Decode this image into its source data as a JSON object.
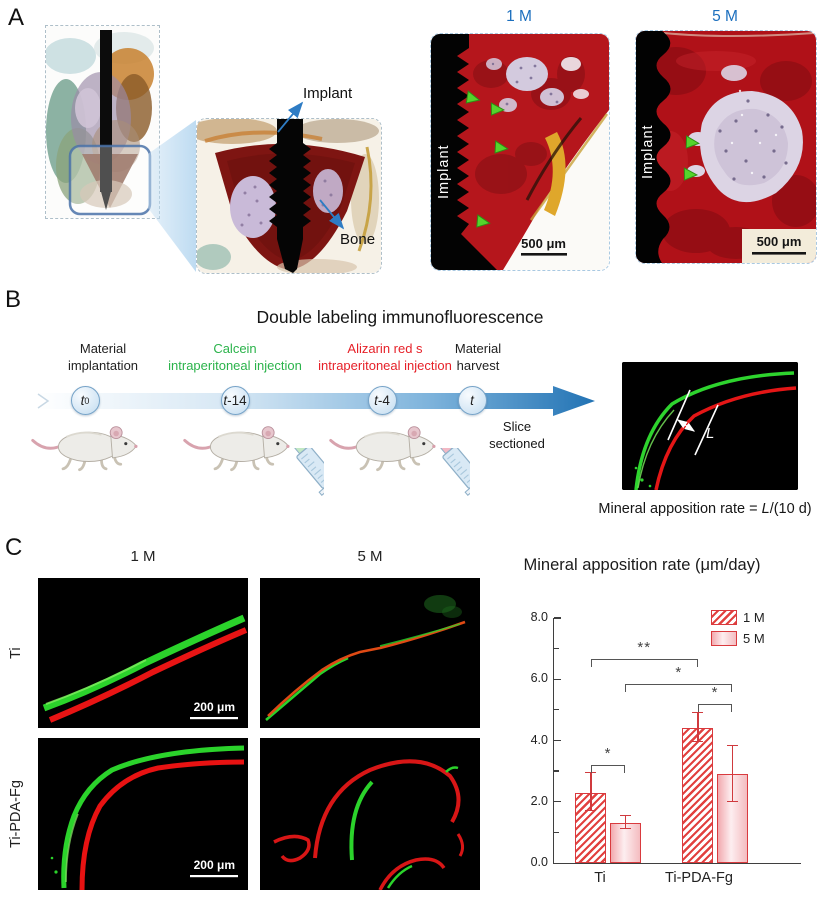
{
  "panel_a": {
    "label": "A",
    "accent_blue": "#1c6fbe",
    "annotations": {
      "implant": "Implant",
      "bone": "Bone"
    },
    "micrographs": [
      {
        "time": "1 M",
        "side": "Implant",
        "scale": "500 μm"
      },
      {
        "time": "5 M",
        "side": "Implant",
        "scale": "500 μm"
      }
    ]
  },
  "panel_b": {
    "label": "B",
    "title": "Double labeling immunofluorescence",
    "events": [
      {
        "line1": "Material",
        "line2": "implantation",
        "t_var": "t",
        "t_sub": "0",
        "t_rest": "",
        "color": "#222222"
      },
      {
        "line1": "Calcein",
        "line2": "intraperitoneal injection",
        "t_var": "t",
        "t_sub": "",
        "t_rest": "-14",
        "color": "#2bb34b"
      },
      {
        "line1": "Alizarin red s",
        "line2": "intraperitoneal injection",
        "t_var": "t",
        "t_sub": "",
        "t_rest": "-4",
        "color": "#e62129"
      },
      {
        "line1": "Material",
        "line2": "harvest",
        "t_var": "t",
        "t_sub": "",
        "t_rest": "",
        "color": "#222222"
      }
    ],
    "slice_line1": "Slice",
    "slice_line2": "sectioned",
    "measure_var": "L",
    "formula_prefix": "Mineral apposition rate = ",
    "formula_var": "L",
    "formula_suffix": "/(10 d)"
  },
  "panel_c": {
    "label": "C",
    "columns": [
      "1 M",
      "5 M"
    ],
    "rows": [
      "Ti",
      "Ti-PDA-Fg"
    ],
    "scale": "200 μm"
  },
  "chart_data": {
    "type": "bar",
    "title": "Mineral apposition rate (μm/day)",
    "categories": [
      "Ti",
      "Ti-PDA-Fg"
    ],
    "series": [
      {
        "name": "1 M",
        "values": [
          2.3,
          4.4
        ],
        "errors": [
          0.6,
          0.45
        ],
        "style": "hatched"
      },
      {
        "name": "5 M",
        "values": [
          1.3,
          2.9
        ],
        "errors": [
          0.2,
          0.9
        ],
        "style": "pink-gradient"
      }
    ],
    "ylim": [
      0,
      8
    ],
    "yticks": [
      0,
      2,
      4,
      6,
      8
    ],
    "ytick_labels": [
      "0.0",
      "2.0",
      "4.0",
      "6.0",
      "8.0"
    ],
    "minor_yticks": [
      1,
      3,
      5,
      7
    ],
    "grid": false,
    "legend_position": "top-right",
    "significance": [
      {
        "label": "*",
        "from": [
          0,
          0
        ],
        "to": [
          0,
          1
        ],
        "y": 3.2
      },
      {
        "label": "*",
        "from": [
          1,
          0
        ],
        "to": [
          1,
          1
        ],
        "y": 5.2
      },
      {
        "label": "**",
        "from": [
          0,
          0
        ],
        "to": [
          1,
          0
        ],
        "y": 6.65
      },
      {
        "label": "*",
        "from": [
          0,
          1
        ],
        "to": [
          1,
          1
        ],
        "y": 5.85
      }
    ],
    "colors": {
      "hatch_red": "#e2413f",
      "bar_border": "#d93a3e",
      "pink_light": "#fdeef0",
      "pink_dark": "#f2a9ae",
      "error_bar": "#d03a3e"
    }
  }
}
